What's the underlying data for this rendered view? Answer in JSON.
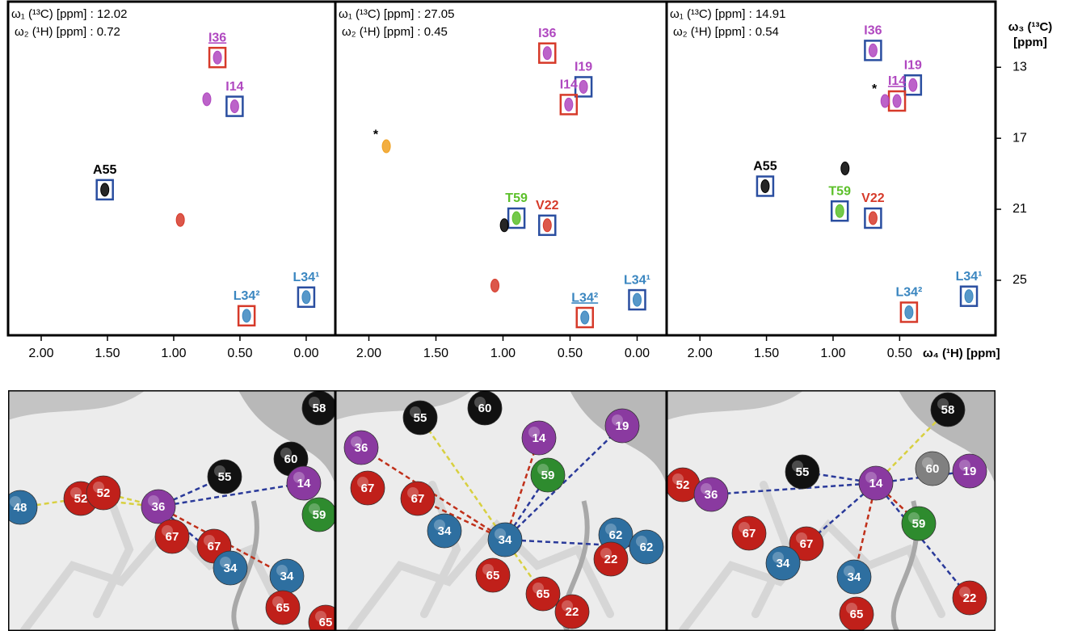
{
  "chart_data": [
    {
      "type": "scatter",
      "annotation_c": "ω₁ (¹³C) [ppm] : 12.02",
      "annotation_h": "ω₂ (¹H) [ppm] : 0.72",
      "xlim": [
        2.25,
        -0.22
      ],
      "ylim": [
        9.3,
        28.1
      ],
      "xticks": [
        {
          "value": 2,
          "label": "2.00"
        },
        {
          "value": 1.5,
          "label": "1.50"
        },
        {
          "value": 1,
          "label": "1.00"
        },
        {
          "value": 0.5,
          "label": "0.50"
        },
        {
          "value": 0,
          "label": "0.00"
        }
      ],
      "peaks": [
        {
          "label": "I36",
          "x": 0.67,
          "y": 12.45,
          "color": "#b048c0",
          "box": "#d63a2a",
          "underline": true
        },
        {
          "x": 0.75,
          "y": 14.8,
          "color": "#b048c0"
        },
        {
          "label": "I14",
          "x": 0.54,
          "y": 15.2,
          "color": "#b048c0",
          "box": "#2a4ea0"
        },
        {
          "label": "A55",
          "x": 1.52,
          "y": 19.9,
          "color": "#000000",
          "box": "#2a4ea0"
        },
        {
          "x": 0.95,
          "y": 21.6,
          "color": "#d63a2a"
        },
        {
          "label": "L34¹",
          "x": 0.0,
          "y": 25.95,
          "color": "#3a86c0",
          "box": "#2a4ea0"
        },
        {
          "label": "L34²",
          "x": 0.45,
          "y": 27.0,
          "color": "#3a86c0",
          "box": "#d63a2a"
        }
      ]
    },
    {
      "type": "scatter",
      "annotation_c": "ω₁ (¹³C) [ppm] : 27.05",
      "annotation_h": "ω₂ (¹H) [ppm] : 0.45",
      "xlim": [
        2.25,
        -0.22
      ],
      "ylim": [
        9.3,
        28.1
      ],
      "xticks": [
        {
          "value": 2,
          "label": "2.00"
        },
        {
          "value": 1.5,
          "label": "1.50"
        },
        {
          "value": 1,
          "label": "1.00"
        },
        {
          "value": 0.5,
          "label": "0.50"
        },
        {
          "value": 0,
          "label": "0.00"
        }
      ],
      "peaks": [
        {
          "label": "I36",
          "x": 0.67,
          "y": 12.2,
          "color": "#b048c0",
          "box": "#d63a2a"
        },
        {
          "label": "I19",
          "x": 0.4,
          "y": 14.1,
          "color": "#b048c0",
          "box": "#2a4ea0"
        },
        {
          "label": "I14",
          "x": 0.51,
          "y": 15.1,
          "color": "#b048c0",
          "box": "#d63a2a"
        },
        {
          "label": "*",
          "x": 1.87,
          "y": 17.45,
          "color": "#f0a020"
        },
        {
          "label": "T59",
          "x": 0.9,
          "y": 21.5,
          "color": "#5cc02a",
          "box": "#2a4ea0"
        },
        {
          "x": 0.99,
          "y": 21.9,
          "color": "#000000"
        },
        {
          "label": "V22",
          "x": 0.67,
          "y": 21.9,
          "color": "#d63a2a",
          "box": "#2a4ea0"
        },
        {
          "x": 1.06,
          "y": 25.3,
          "color": "#d63a2a"
        },
        {
          "label": "L34¹",
          "x": 0.0,
          "y": 26.1,
          "color": "#3a86c0",
          "box": "#2a4ea0"
        },
        {
          "label": "L34²",
          "x": 0.39,
          "y": 27.1,
          "color": "#3a86c0",
          "box": "#d63a2a",
          "underline": true
        }
      ]
    },
    {
      "type": "scatter",
      "annotation_c": "ω₁ (¹³C) [ppm] : 14.91",
      "annotation_h": "ω₂ (¹H) [ppm] : 0.54",
      "xlim": [
        2.25,
        -0.22
      ],
      "ylim": [
        9.3,
        28.1
      ],
      "xlabel": "ω₄ (¹H) [ppm]",
      "ylabel": "ω₃ (¹³C) [ppm]",
      "xticks": [
        {
          "value": 2,
          "label": "2.00"
        },
        {
          "value": 1.5,
          "label": "1.50"
        },
        {
          "value": 1,
          "label": "1.00"
        },
        {
          "value": 0.5,
          "label": "0.50"
        }
      ],
      "yticks": [
        13,
        17,
        21,
        25
      ],
      "peaks": [
        {
          "label": "I36",
          "x": 0.7,
          "y": 12.05,
          "color": "#b048c0",
          "box": "#2a4ea0"
        },
        {
          "label": "I19",
          "x": 0.4,
          "y": 14.0,
          "color": "#b048c0",
          "box": "#2a4ea0"
        },
        {
          "label": "I14",
          "x": 0.52,
          "y": 14.9,
          "color": "#b048c0",
          "box": "#d63a2a",
          "underline": true
        },
        {
          "label": "*",
          "x": 0.61,
          "y": 14.9,
          "color": "#b048c0"
        },
        {
          "x": 0.91,
          "y": 18.7,
          "color": "#000000"
        },
        {
          "label": "A55",
          "x": 1.51,
          "y": 19.7,
          "color": "#000000",
          "box": "#2a4ea0"
        },
        {
          "label": "T59",
          "x": 0.95,
          "y": 21.1,
          "color": "#5cc02a",
          "box": "#2a4ea0"
        },
        {
          "label": "V22",
          "x": 0.7,
          "y": 21.5,
          "color": "#d63a2a",
          "box": "#2a4ea0"
        },
        {
          "label": "L34²",
          "x": 0.43,
          "y": 26.8,
          "color": "#3a86c0",
          "box": "#d63a2a"
        },
        {
          "label": "L34¹",
          "x": -0.02,
          "y": 25.9,
          "color": "#3a86c0",
          "box": "#2a4ea0"
        }
      ]
    }
  ],
  "structures": [
    {
      "spheres": [
        {
          "label": "58",
          "color": "#111111"
        },
        {
          "label": "60",
          "color": "#111111"
        },
        {
          "label": "55",
          "color": "#111111"
        },
        {
          "label": "14",
          "color": "#8a3aa0"
        },
        {
          "label": "59",
          "color": "#2e8b2e"
        },
        {
          "label": "48",
          "color": "#2e6fa0"
        },
        {
          "label": "52",
          "color": "#c0201a"
        },
        {
          "label": "52",
          "color": "#c0201a"
        },
        {
          "label": "36",
          "color": "#8a3aa0"
        },
        {
          "label": "67",
          "color": "#c0201a"
        },
        {
          "label": "67",
          "color": "#c0201a"
        },
        {
          "label": "34",
          "color": "#2e6fa0"
        },
        {
          "label": "34",
          "color": "#2e6fa0"
        },
        {
          "label": "65",
          "color": "#c0201a"
        },
        {
          "label": "65",
          "color": "#c0201a"
        }
      ]
    },
    {
      "spheres": [
        {
          "label": "55",
          "color": "#111111"
        },
        {
          "label": "60",
          "color": "#111111"
        },
        {
          "label": "14",
          "color": "#8a3aa0"
        },
        {
          "label": "19",
          "color": "#8a3aa0"
        },
        {
          "label": "36",
          "color": "#8a3aa0"
        },
        {
          "label": "59",
          "color": "#2e8b2e"
        },
        {
          "label": "67",
          "color": "#c0201a"
        },
        {
          "label": "67",
          "color": "#c0201a"
        },
        {
          "label": "34",
          "color": "#2e6fa0"
        },
        {
          "label": "34",
          "color": "#2e6fa0"
        },
        {
          "label": "62",
          "color": "#2e6fa0"
        },
        {
          "label": "62",
          "color": "#2e6fa0"
        },
        {
          "label": "22",
          "color": "#c0201a"
        },
        {
          "label": "65",
          "color": "#c0201a"
        },
        {
          "label": "65",
          "color": "#c0201a"
        },
        {
          "label": "22",
          "color": "#c0201a"
        }
      ]
    },
    {
      "spheres": [
        {
          "label": "58",
          "color": "#111111"
        },
        {
          "label": "55",
          "color": "#111111"
        },
        {
          "label": "14",
          "color": "#8a3aa0"
        },
        {
          "label": "60",
          "color": "#808080"
        },
        {
          "label": "19",
          "color": "#8a3aa0"
        },
        {
          "label": "52",
          "color": "#c0201a"
        },
        {
          "label": "36",
          "color": "#8a3aa0"
        },
        {
          "label": "59",
          "color": "#2e8b2e"
        },
        {
          "label": "67",
          "color": "#c0201a"
        },
        {
          "label": "67",
          "color": "#c0201a"
        },
        {
          "label": "34",
          "color": "#2e6fa0"
        },
        {
          "label": "34",
          "color": "#2e6fa0"
        },
        {
          "label": "22",
          "color": "#c0201a"
        },
        {
          "label": "65",
          "color": "#c0201a"
        }
      ]
    }
  ]
}
